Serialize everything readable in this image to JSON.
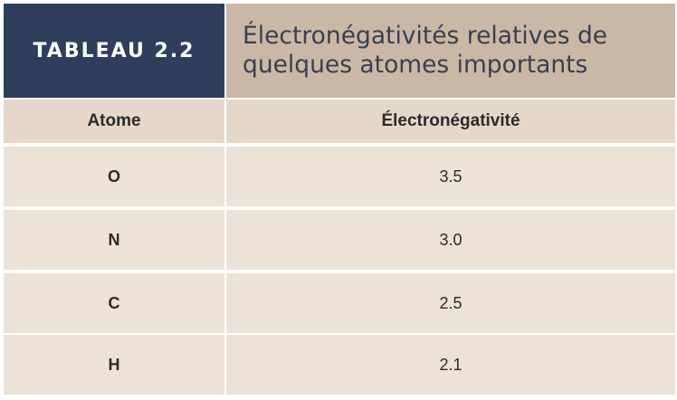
{
  "table": {
    "label": "TABLEAU 2.2",
    "title_line1": "Électronégativités relatives de",
    "title_line2": "quelques atomes importants",
    "columns": [
      "Atome",
      "Électronégativité"
    ],
    "rows": [
      {
        "atom": "O",
        "value": "3.5"
      },
      {
        "atom": "N",
        "value": "3.0"
      },
      {
        "atom": "C",
        "value": "2.5"
      },
      {
        "atom": "H",
        "value": "2.1"
      }
    ]
  },
  "colors": {
    "label_bg": "#2f3e5c",
    "title_bg": "#c9b8a6",
    "header_bg": "#e5d8cb",
    "cell_bg": "#ece2d8",
    "title_text": "#3a3f4f"
  }
}
